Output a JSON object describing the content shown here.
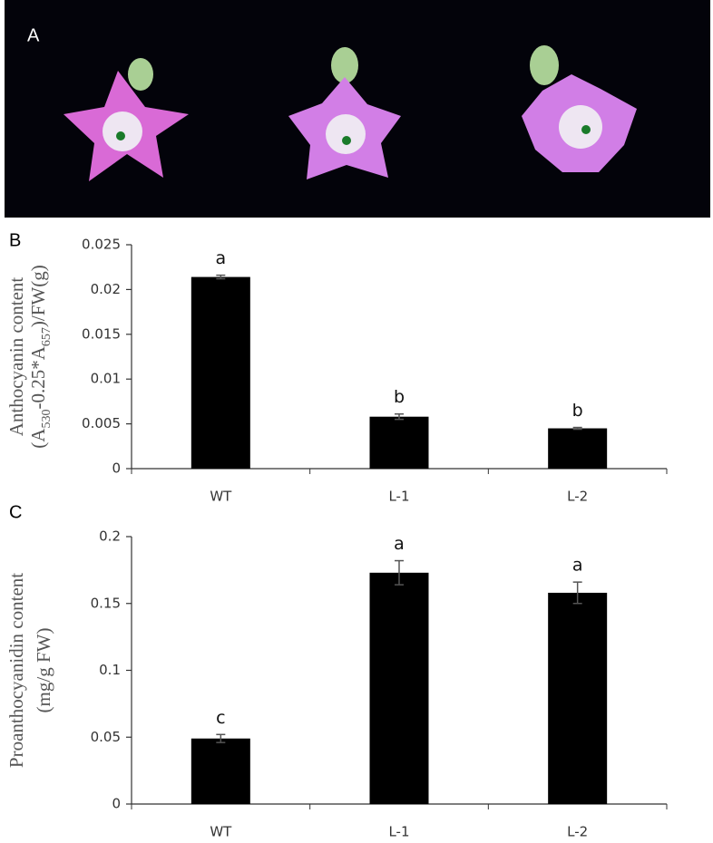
{
  "photo_panel": {
    "label": "A"
  },
  "chart_data": [
    {
      "type": "bar",
      "panel_label": "B",
      "ylabel_lines": [
        [
          "Anthocyanin content"
        ],
        [
          "(A",
          {
            "sub": "530"
          },
          "-0.25*A",
          {
            "sub": "657"
          },
          ")/FW(g)"
        ]
      ],
      "categories": [
        "WT",
        "L-1",
        "L-2"
      ],
      "values": [
        0.0214,
        0.0058,
        0.0045
      ],
      "errors": [
        0.0002,
        0.0003,
        0.0001
      ],
      "annotations": [
        "a",
        "b",
        "b"
      ],
      "color": "#000000",
      "ylim": [
        0,
        0.025
      ],
      "yticks": [
        0,
        0.005,
        0.01,
        0.015,
        0.02,
        0.025
      ]
    },
    {
      "type": "bar",
      "panel_label": "C",
      "ylabel_lines": [
        [
          "Proanthocyanidin content"
        ],
        [
          "(mg/g FW)"
        ]
      ],
      "categories": [
        "WT",
        "L-1",
        "L-2"
      ],
      "values": [
        0.049,
        0.173,
        0.158
      ],
      "errors": [
        0.003,
        0.009,
        0.008
      ],
      "annotations": [
        "c",
        "a",
        "a"
      ],
      "color": "#000000",
      "ylim": [
        0,
        0.2
      ],
      "yticks": [
        0,
        0.05,
        0.1,
        0.15,
        0.2
      ]
    }
  ]
}
